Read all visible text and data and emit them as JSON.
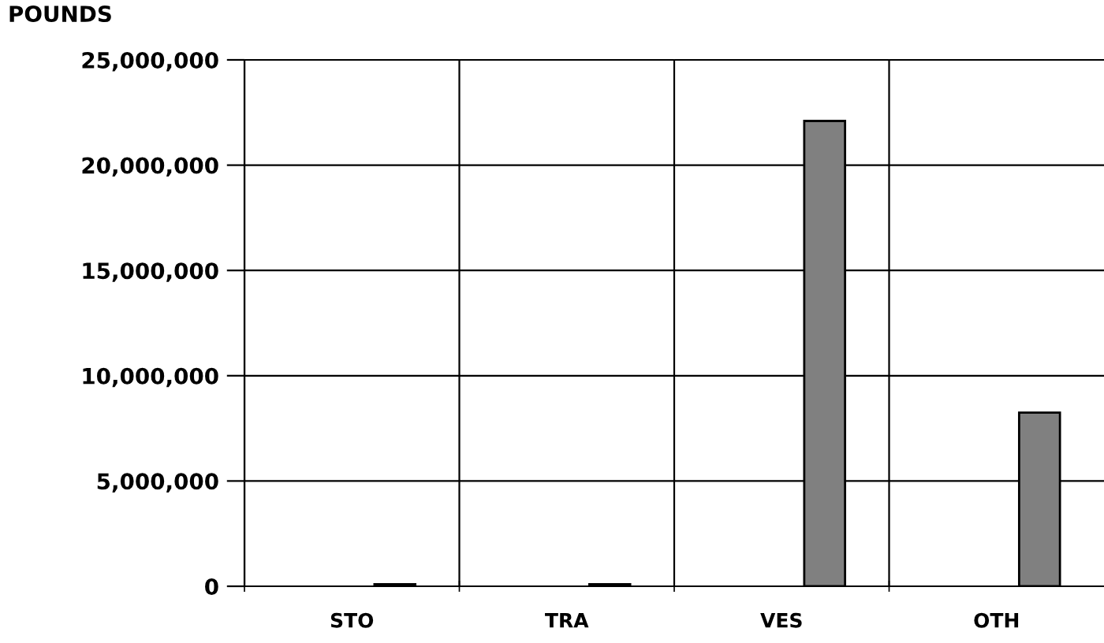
{
  "chart_data": {
    "type": "bar",
    "ylabel": "POUNDS",
    "categories": [
      "STO",
      "TRA",
      "VES",
      "OTH"
    ],
    "values": [
      100000,
      100000,
      22100000,
      8250000
    ],
    "color": "#808080",
    "ylim": [
      0,
      25000000
    ],
    "yticks": [
      {
        "value": 0,
        "label": "0"
      },
      {
        "value": 5000000,
        "label": "5,000,000"
      },
      {
        "value": 10000000,
        "label": "10,000,000"
      },
      {
        "value": 15000000,
        "label": "15,000,000"
      },
      {
        "value": 20000000,
        "label": "20,000,000"
      },
      {
        "value": 25000000,
        "label": "25,000,000"
      }
    ],
    "grid": true
  }
}
